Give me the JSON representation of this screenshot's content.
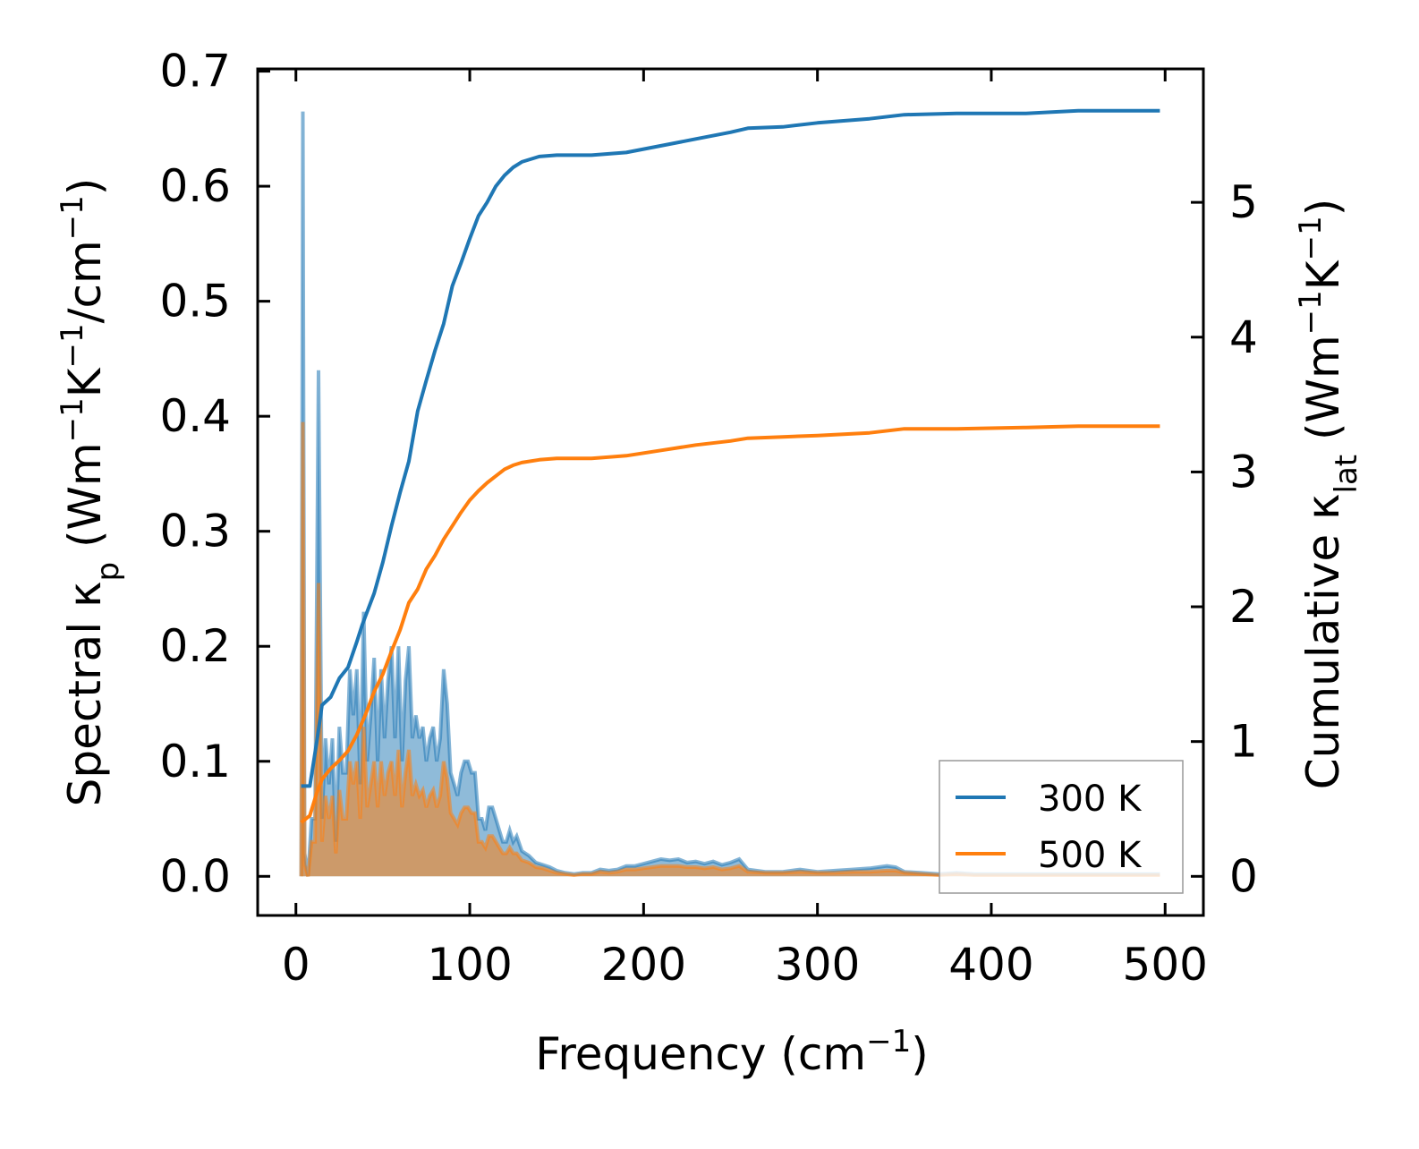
{
  "chart_data": {
    "type": "line",
    "title": "",
    "xlabel": {
      "text": "Frequency (cm",
      "sup": "−1",
      "tail": ")"
    },
    "ylabel_left": {
      "p1": "Spectral κ",
      "sub": "p",
      "p2": " (Wm",
      "sup1": "−1",
      "p3": "K",
      "sup2": "−1",
      "p4": "/cm",
      "sup3": "−1",
      "p5": ")"
    },
    "ylabel_right": {
      "p1": "Cumulative κ",
      "sub": "lat",
      "p2": " (Wm",
      "sup1": "−1",
      "p3": "K",
      "sup2": "−1",
      "p4": ")"
    },
    "xlim": [
      -22,
      522
    ],
    "ylim_left": [
      -0.034,
      0.702
    ],
    "ylim_right": [
      -0.29,
      5.99
    ],
    "x_ticks": [
      0,
      100,
      200,
      300,
      400,
      500
    ],
    "x_tick_labels": [
      "0",
      "100",
      "200",
      "300",
      "400",
      "500"
    ],
    "y_left_ticks": [
      0.0,
      0.1,
      0.2,
      0.3,
      0.4,
      0.5,
      0.6,
      0.7
    ],
    "y_left_tick_labels": [
      "0.0",
      "0.1",
      "0.2",
      "0.3",
      "0.4",
      "0.5",
      "0.6",
      "0.7"
    ],
    "y_right_ticks": [
      0,
      1,
      2,
      3,
      4,
      5
    ],
    "y_right_tick_labels": [
      "0",
      "1",
      "2",
      "3",
      "4",
      "5"
    ],
    "legend_position": "lower-right",
    "series": [
      {
        "name": "300 K",
        "color": "#1f77b4",
        "cumulative_axis": "right",
        "cumulative": [
          [
            3,
            0.67
          ],
          [
            8,
            0.67
          ],
          [
            12,
            1.0
          ],
          [
            15,
            1.27
          ],
          [
            20,
            1.33
          ],
          [
            25,
            1.47
          ],
          [
            30,
            1.55
          ],
          [
            35,
            1.74
          ],
          [
            38,
            1.86
          ],
          [
            40,
            1.93
          ],
          [
            45,
            2.1
          ],
          [
            50,
            2.33
          ],
          [
            55,
            2.6
          ],
          [
            60,
            2.85
          ],
          [
            65,
            3.08
          ],
          [
            70,
            3.45
          ],
          [
            75,
            3.68
          ],
          [
            80,
            3.9
          ],
          [
            85,
            4.1
          ],
          [
            90,
            4.38
          ],
          [
            95,
            4.55
          ],
          [
            100,
            4.73
          ],
          [
            105,
            4.9
          ],
          [
            110,
            5.0
          ],
          [
            115,
            5.12
          ],
          [
            120,
            5.2
          ],
          [
            125,
            5.26
          ],
          [
            130,
            5.3
          ],
          [
            140,
            5.34
          ],
          [
            150,
            5.35
          ],
          [
            170,
            5.35
          ],
          [
            190,
            5.37
          ],
          [
            210,
            5.42
          ],
          [
            230,
            5.47
          ],
          [
            250,
            5.52
          ],
          [
            260,
            5.55
          ],
          [
            280,
            5.56
          ],
          [
            300,
            5.59
          ],
          [
            330,
            5.62
          ],
          [
            350,
            5.65
          ],
          [
            380,
            5.66
          ],
          [
            420,
            5.66
          ],
          [
            450,
            5.68
          ],
          [
            497,
            5.68
          ]
        ],
        "spectral": [
          [
            3,
            0.0
          ],
          [
            4,
            0.665
          ],
          [
            5,
            0.02
          ],
          [
            7,
            0.0
          ],
          [
            9,
            0.05
          ],
          [
            11,
            0.05
          ],
          [
            13,
            0.44
          ],
          [
            15,
            0.05
          ],
          [
            17,
            0.12
          ],
          [
            19,
            0.08
          ],
          [
            21,
            0.12
          ],
          [
            23,
            0.03
          ],
          [
            25,
            0.13
          ],
          [
            27,
            0.09
          ],
          [
            29,
            0.09
          ],
          [
            31,
            0.18
          ],
          [
            33,
            0.14
          ],
          [
            35,
            0.18
          ],
          [
            37,
            0.08
          ],
          [
            39,
            0.23
          ],
          [
            41,
            0.1
          ],
          [
            43,
            0.14
          ],
          [
            45,
            0.19
          ],
          [
            47,
            0.1
          ],
          [
            49,
            0.18
          ],
          [
            51,
            0.12
          ],
          [
            53,
            0.17
          ],
          [
            55,
            0.2
          ],
          [
            57,
            0.12
          ],
          [
            59,
            0.2
          ],
          [
            61,
            0.1
          ],
          [
            63,
            0.17
          ],
          [
            65,
            0.2
          ],
          [
            67,
            0.12
          ],
          [
            69,
            0.14
          ],
          [
            71,
            0.12
          ],
          [
            73,
            0.13
          ],
          [
            75,
            0.1
          ],
          [
            77,
            0.12
          ],
          [
            79,
            0.13
          ],
          [
            81,
            0.1
          ],
          [
            83,
            0.12
          ],
          [
            85,
            0.18
          ],
          [
            87,
            0.15
          ],
          [
            89,
            0.09
          ],
          [
            91,
            0.08
          ],
          [
            93,
            0.07
          ],
          [
            95,
            0.09
          ],
          [
            97,
            0.1
          ],
          [
            99,
            0.1
          ],
          [
            101,
            0.09
          ],
          [
            103,
            0.09
          ],
          [
            105,
            0.05
          ],
          [
            107,
            0.05
          ],
          [
            109,
            0.04
          ],
          [
            111,
            0.06
          ],
          [
            113,
            0.06
          ],
          [
            115,
            0.05
          ],
          [
            117,
            0.04
          ],
          [
            119,
            0.03
          ],
          [
            121,
            0.03
          ],
          [
            123,
            0.04
          ],
          [
            125,
            0.03
          ],
          [
            127,
            0.035
          ],
          [
            130,
            0.022
          ],
          [
            134,
            0.018
          ],
          [
            138,
            0.012
          ],
          [
            142,
            0.01
          ],
          [
            146,
            0.008
          ],
          [
            150,
            0.005
          ],
          [
            155,
            0.003
          ],
          [
            160,
            0.002
          ],
          [
            165,
            0.003
          ],
          [
            170,
            0.003
          ],
          [
            175,
            0.006
          ],
          [
            180,
            0.005
          ],
          [
            185,
            0.006
          ],
          [
            190,
            0.009
          ],
          [
            195,
            0.009
          ],
          [
            200,
            0.011
          ],
          [
            205,
            0.013
          ],
          [
            210,
            0.015
          ],
          [
            215,
            0.014
          ],
          [
            220,
            0.015
          ],
          [
            225,
            0.012
          ],
          [
            230,
            0.013
          ],
          [
            235,
            0.011
          ],
          [
            240,
            0.013
          ],
          [
            245,
            0.01
          ],
          [
            250,
            0.012
          ],
          [
            255,
            0.015
          ],
          [
            260,
            0.006
          ],
          [
            270,
            0.004
          ],
          [
            280,
            0.004
          ],
          [
            290,
            0.006
          ],
          [
            300,
            0.004
          ],
          [
            310,
            0.005
          ],
          [
            320,
            0.006
          ],
          [
            330,
            0.007
          ],
          [
            340,
            0.009
          ],
          [
            345,
            0.008
          ],
          [
            350,
            0.004
          ],
          [
            360,
            0.003
          ],
          [
            370,
            0.002
          ],
          [
            380,
            0.003
          ],
          [
            390,
            0.002
          ],
          [
            400,
            0.002
          ],
          [
            420,
            0.002
          ],
          [
            440,
            0.002
          ],
          [
            460,
            0.002
          ],
          [
            480,
            0.002
          ],
          [
            497,
            0.002
          ]
        ]
      },
      {
        "name": "500 K",
        "color": "#ff7f0e",
        "cumulative_axis": "right",
        "cumulative": [
          [
            3,
            0.4
          ],
          [
            8,
            0.45
          ],
          [
            12,
            0.62
          ],
          [
            15,
            0.72
          ],
          [
            20,
            0.8
          ],
          [
            25,
            0.86
          ],
          [
            30,
            0.93
          ],
          [
            35,
            1.05
          ],
          [
            40,
            1.2
          ],
          [
            45,
            1.37
          ],
          [
            50,
            1.5
          ],
          [
            55,
            1.67
          ],
          [
            60,
            1.83
          ],
          [
            65,
            2.03
          ],
          [
            70,
            2.13
          ],
          [
            75,
            2.28
          ],
          [
            80,
            2.38
          ],
          [
            85,
            2.5
          ],
          [
            90,
            2.6
          ],
          [
            95,
            2.7
          ],
          [
            100,
            2.79
          ],
          [
            105,
            2.86
          ],
          [
            110,
            2.92
          ],
          [
            115,
            2.97
          ],
          [
            120,
            3.02
          ],
          [
            125,
            3.05
          ],
          [
            130,
            3.07
          ],
          [
            140,
            3.09
          ],
          [
            150,
            3.1
          ],
          [
            170,
            3.1
          ],
          [
            190,
            3.12
          ],
          [
            210,
            3.16
          ],
          [
            230,
            3.2
          ],
          [
            250,
            3.23
          ],
          [
            260,
            3.25
          ],
          [
            280,
            3.26
          ],
          [
            300,
            3.27
          ],
          [
            330,
            3.29
          ],
          [
            350,
            3.32
          ],
          [
            380,
            3.32
          ],
          [
            420,
            3.33
          ],
          [
            450,
            3.34
          ],
          [
            497,
            3.34
          ]
        ],
        "spectral": [
          [
            3,
            0.0
          ],
          [
            4,
            0.395
          ],
          [
            5,
            0.01
          ],
          [
            7,
            0.0
          ],
          [
            9,
            0.03
          ],
          [
            11,
            0.03
          ],
          [
            13,
            0.255
          ],
          [
            15,
            0.03
          ],
          [
            17,
            0.07
          ],
          [
            19,
            0.05
          ],
          [
            21,
            0.07
          ],
          [
            23,
            0.02
          ],
          [
            25,
            0.075
          ],
          [
            27,
            0.05
          ],
          [
            29,
            0.05
          ],
          [
            31,
            0.1
          ],
          [
            33,
            0.08
          ],
          [
            35,
            0.1
          ],
          [
            37,
            0.05
          ],
          [
            39,
            0.13
          ],
          [
            41,
            0.06
          ],
          [
            43,
            0.08
          ],
          [
            45,
            0.1
          ],
          [
            47,
            0.06
          ],
          [
            49,
            0.1
          ],
          [
            51,
            0.07
          ],
          [
            53,
            0.09
          ],
          [
            55,
            0.1
          ],
          [
            57,
            0.07
          ],
          [
            59,
            0.11
          ],
          [
            61,
            0.06
          ],
          [
            63,
            0.09
          ],
          [
            65,
            0.11
          ],
          [
            67,
            0.07
          ],
          [
            69,
            0.08
          ],
          [
            71,
            0.07
          ],
          [
            73,
            0.075
          ],
          [
            75,
            0.06
          ],
          [
            77,
            0.07
          ],
          [
            79,
            0.075
          ],
          [
            81,
            0.06
          ],
          [
            83,
            0.07
          ],
          [
            85,
            0.1
          ],
          [
            87,
            0.085
          ],
          [
            89,
            0.055
          ],
          [
            91,
            0.05
          ],
          [
            93,
            0.045
          ],
          [
            95,
            0.055
          ],
          [
            97,
            0.06
          ],
          [
            99,
            0.06
          ],
          [
            101,
            0.055
          ],
          [
            103,
            0.055
          ],
          [
            105,
            0.03
          ],
          [
            107,
            0.03
          ],
          [
            109,
            0.025
          ],
          [
            111,
            0.035
          ],
          [
            113,
            0.035
          ],
          [
            115,
            0.03
          ],
          [
            117,
            0.025
          ],
          [
            119,
            0.02
          ],
          [
            121,
            0.02
          ],
          [
            123,
            0.025
          ],
          [
            125,
            0.02
          ],
          [
            127,
            0.02
          ],
          [
            130,
            0.014
          ],
          [
            134,
            0.012
          ],
          [
            138,
            0.008
          ],
          [
            142,
            0.007
          ],
          [
            146,
            0.005
          ],
          [
            150,
            0.003
          ],
          [
            155,
            0.002
          ],
          [
            160,
            0.001
          ],
          [
            165,
            0.002
          ],
          [
            170,
            0.002
          ],
          [
            175,
            0.004
          ],
          [
            180,
            0.003
          ],
          [
            185,
            0.004
          ],
          [
            190,
            0.006
          ],
          [
            195,
            0.006
          ],
          [
            200,
            0.007
          ],
          [
            205,
            0.008
          ],
          [
            210,
            0.009
          ],
          [
            215,
            0.009
          ],
          [
            220,
            0.009
          ],
          [
            225,
            0.008
          ],
          [
            230,
            0.008
          ],
          [
            235,
            0.007
          ],
          [
            240,
            0.008
          ],
          [
            245,
            0.006
          ],
          [
            250,
            0.007
          ],
          [
            255,
            0.009
          ],
          [
            260,
            0.004
          ],
          [
            270,
            0.003
          ],
          [
            280,
            0.003
          ],
          [
            290,
            0.004
          ],
          [
            300,
            0.003
          ],
          [
            310,
            0.003
          ],
          [
            320,
            0.004
          ],
          [
            330,
            0.004
          ],
          [
            340,
            0.005
          ],
          [
            345,
            0.005
          ],
          [
            350,
            0.003
          ],
          [
            360,
            0.002
          ],
          [
            370,
            0.001
          ],
          [
            380,
            0.002
          ],
          [
            390,
            0.001
          ],
          [
            400,
            0.001
          ],
          [
            420,
            0.001
          ],
          [
            440,
            0.001
          ],
          [
            460,
            0.001
          ],
          [
            480,
            0.001
          ],
          [
            497,
            0.001
          ]
        ]
      }
    ]
  }
}
